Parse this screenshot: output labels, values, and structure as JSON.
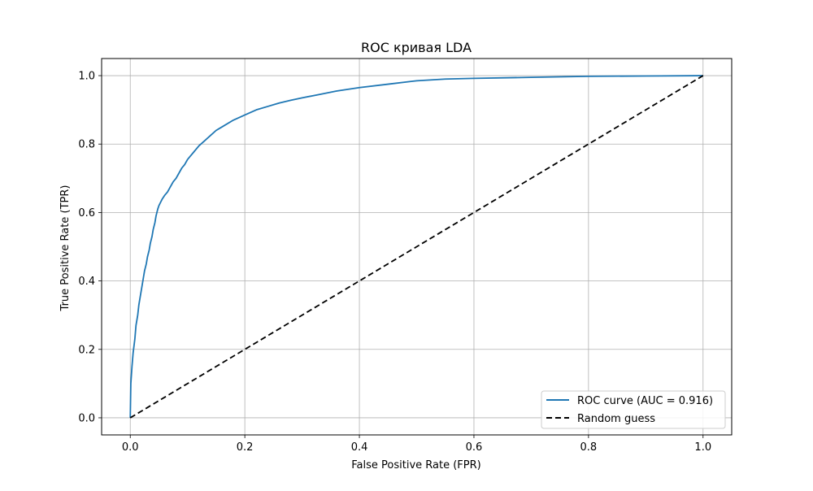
{
  "chart_data": {
    "type": "line",
    "title": "ROC кривая LDA",
    "xlabel": "False Positive Rate (FPR)",
    "ylabel": "True Positive Rate (TPR)",
    "xlim": [
      -0.05,
      1.05
    ],
    "ylim": [
      -0.05,
      1.05
    ],
    "xticks": [
      0.0,
      0.2,
      0.4,
      0.6,
      0.8,
      1.0
    ],
    "yticks": [
      0.0,
      0.2,
      0.4,
      0.6,
      0.8,
      1.0
    ],
    "xtick_labels": [
      "0.0",
      "0.2",
      "0.4",
      "0.6",
      "0.8",
      "1.0"
    ],
    "ytick_labels": [
      "0.0",
      "0.2",
      "0.4",
      "0.6",
      "0.8",
      "1.0"
    ],
    "grid": true,
    "legend_position": "lower-right",
    "series": [
      {
        "name": "ROC curve (AUC = 0.916)",
        "color": "#1f77b4",
        "style": "solid",
        "x": [
          0.0,
          0.001,
          0.003,
          0.005,
          0.008,
          0.01,
          0.013,
          0.015,
          0.018,
          0.02,
          0.023,
          0.025,
          0.028,
          0.03,
          0.033,
          0.035,
          0.038,
          0.04,
          0.043,
          0.045,
          0.048,
          0.05,
          0.053,
          0.056,
          0.06,
          0.065,
          0.07,
          0.075,
          0.08,
          0.085,
          0.09,
          0.095,
          0.1,
          0.105,
          0.11,
          0.12,
          0.13,
          0.14,
          0.15,
          0.16,
          0.18,
          0.2,
          0.22,
          0.24,
          0.26,
          0.28,
          0.3,
          0.33,
          0.36,
          0.4,
          0.45,
          0.5,
          0.55,
          0.6,
          0.7,
          0.8,
          0.9,
          1.0
        ],
        "y": [
          0.0,
          0.1,
          0.15,
          0.19,
          0.23,
          0.27,
          0.3,
          0.33,
          0.36,
          0.38,
          0.41,
          0.43,
          0.45,
          0.47,
          0.49,
          0.51,
          0.53,
          0.55,
          0.57,
          0.59,
          0.61,
          0.62,
          0.63,
          0.64,
          0.65,
          0.66,
          0.675,
          0.69,
          0.7,
          0.715,
          0.73,
          0.74,
          0.755,
          0.765,
          0.775,
          0.795,
          0.81,
          0.825,
          0.84,
          0.85,
          0.87,
          0.885,
          0.9,
          0.91,
          0.92,
          0.928,
          0.935,
          0.945,
          0.955,
          0.965,
          0.975,
          0.985,
          0.99,
          0.992,
          0.995,
          0.998,
          0.999,
          1.0
        ]
      },
      {
        "name": "Random guess",
        "color": "#000000",
        "style": "dashed",
        "x": [
          0.0,
          1.0
        ],
        "y": [
          0.0,
          1.0
        ]
      }
    ]
  }
}
